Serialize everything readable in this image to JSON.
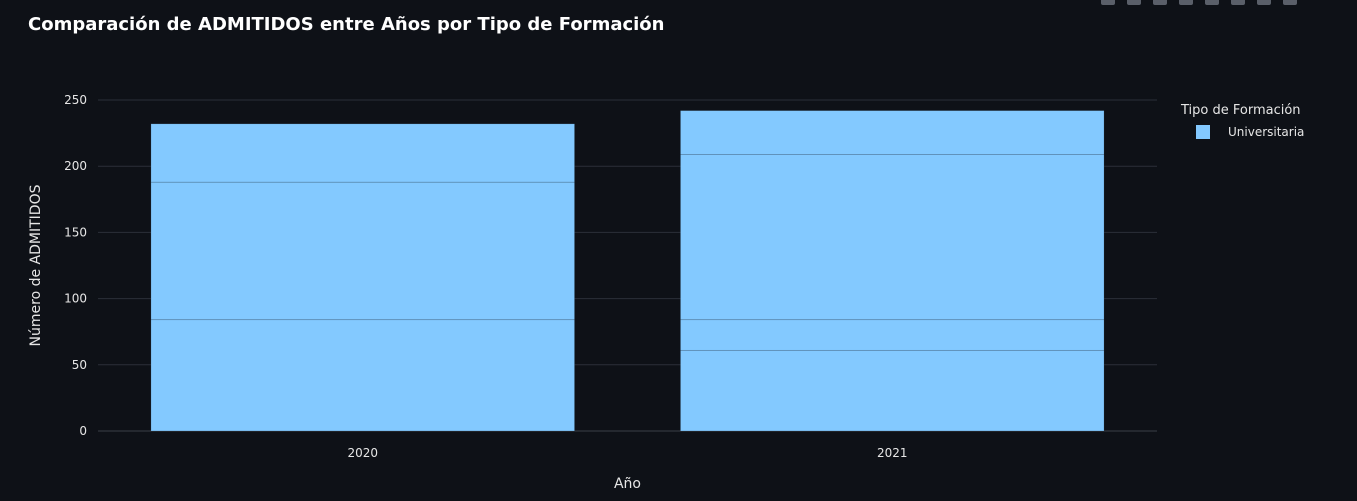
{
  "title": "Comparación de ADMITIDOS entre Años por Tipo de Formación",
  "chart_data": {
    "type": "bar",
    "barmode": "stack",
    "categories": [
      "2020",
      "2021"
    ],
    "xlabel": "Año",
    "ylabel": "Número de ADMITIDOS",
    "ylim": [
      0,
      250
    ],
    "yticks": [
      0,
      50,
      100,
      150,
      200,
      250
    ],
    "grid": true,
    "legend_title": "Tipo de Formación",
    "legend_position": "top-right",
    "bar_color": "#83c9ff",
    "series": [
      {
        "name": "Universitaria",
        "segments": [
          [
            84,
            104,
            44
          ],
          [
            61,
            23,
            125,
            33
          ]
        ],
        "totals": [
          232,
          242
        ]
      }
    ]
  }
}
